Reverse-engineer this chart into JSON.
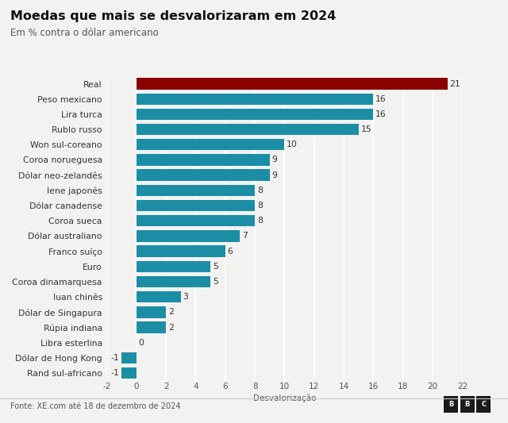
{
  "title": "Moedas que mais se desvalorizaram em 2024",
  "subtitle": "Em % contra o dólar americano",
  "xlabel": "Desvalorização",
  "footer": "Fonte: XE.com até 18 de dezembro de 2024",
  "categories": [
    "Real",
    "Peso mexicano",
    "Lira turca",
    "Rublo russo",
    "Won sul-coreano",
    "Coroa norueguesa",
    "Dólar neo-zelandês",
    "Iene japonês",
    "Dólar canadense",
    "Coroa sueca",
    "Dólar australiano",
    "Franco suíço",
    "Euro",
    "Coroa dinamarquesa",
    "Iuan chinês",
    "Dólar de Singapura",
    "Rúpia indiana",
    "Libra esterlina",
    "Dólar de Hong Kong",
    "Rand sul-africano"
  ],
  "values": [
    21,
    16,
    16,
    15,
    10,
    9,
    9,
    8,
    8,
    8,
    7,
    6,
    5,
    5,
    3,
    2,
    2,
    0,
    -1,
    -1
  ],
  "bar_colors": [
    "#8B0000",
    "#1B8EA6",
    "#1B8EA6",
    "#1B8EA6",
    "#1B8EA6",
    "#1B8EA6",
    "#1B8EA6",
    "#1B8EA6",
    "#1B8EA6",
    "#1B8EA6",
    "#1B8EA6",
    "#1B8EA6",
    "#1B8EA6",
    "#1B8EA6",
    "#1B8EA6",
    "#1B8EA6",
    "#1B8EA6",
    "#1B8EA6",
    "#1B8EA6",
    "#1B8EA6"
  ],
  "xlim": [
    -2,
    22
  ],
  "xticks": [
    -2,
    0,
    2,
    4,
    6,
    8,
    10,
    12,
    14,
    16,
    18,
    20,
    22
  ],
  "background_color": "#f2f2f0",
  "title_fontsize": 11.5,
  "subtitle_fontsize": 8.5,
  "label_fontsize": 7.8,
  "tick_fontsize": 7.5,
  "footer_fontsize": 7.0,
  "bar_height": 0.75
}
